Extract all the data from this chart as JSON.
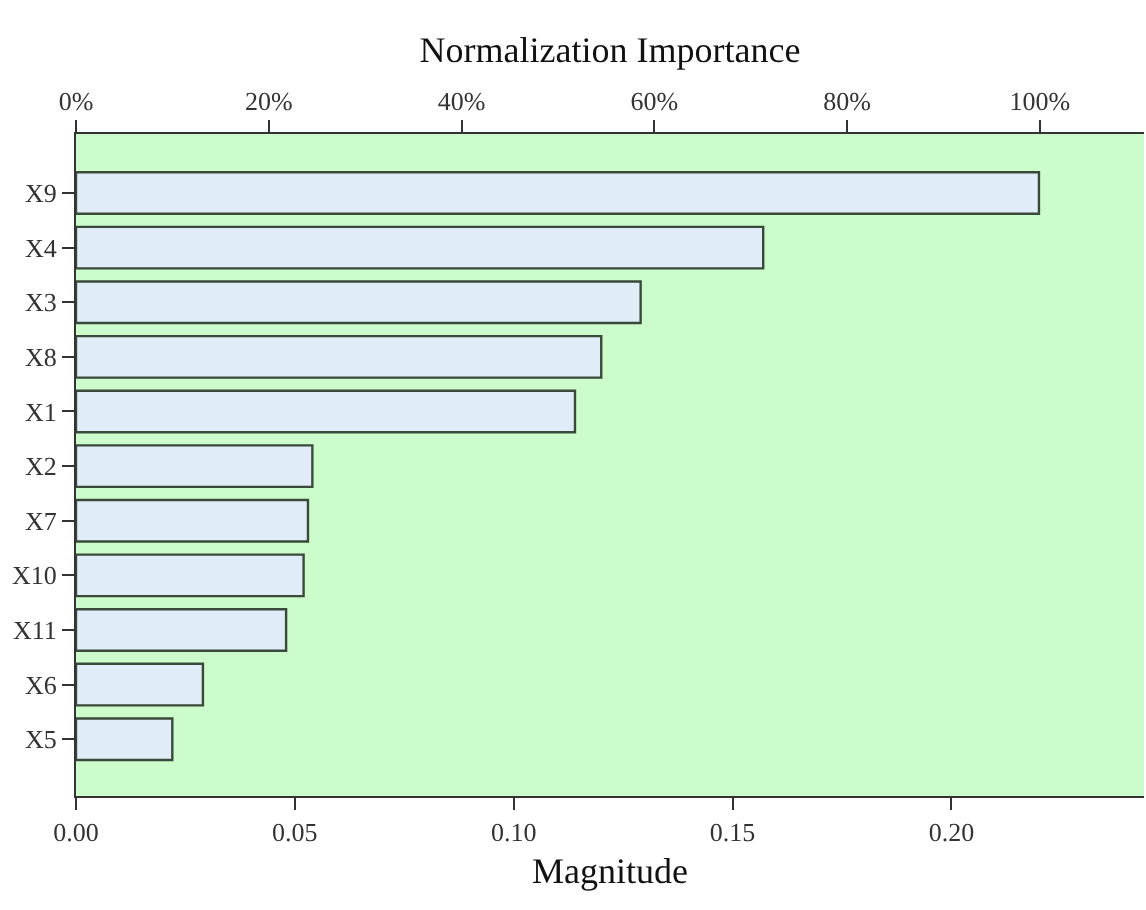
{
  "chart_data": {
    "type": "bar",
    "orientation": "horizontal",
    "xlabel": "Magnitude",
    "x2label": "Normalization Importance",
    "categories": [
      "X9",
      "X4",
      "X3",
      "X8",
      "X1",
      "X2",
      "X7",
      "X10",
      "X11",
      "X6",
      "X5"
    ],
    "values": [
      0.22,
      0.157,
      0.129,
      0.12,
      0.114,
      0.054,
      0.053,
      0.052,
      0.048,
      0.029,
      0.022
    ],
    "color": "#e0ecf8",
    "xlim": [
      0,
      0.244
    ],
    "xticks": [
      {
        "value": 0,
        "label": "0.00"
      },
      {
        "value": 0.05,
        "label": "0.05"
      },
      {
        "value": 0.1,
        "label": "0.10"
      },
      {
        "value": 0.15,
        "label": "0.15"
      },
      {
        "value": 0.2,
        "label": "0.20"
      }
    ],
    "x2lim": [
      0,
      110.8
    ],
    "x2ticks": [
      {
        "value": 0,
        "label": "0%"
      },
      {
        "value": 20,
        "label": "20%"
      },
      {
        "value": 40,
        "label": "40%"
      },
      {
        "value": 60,
        "label": "60%"
      },
      {
        "value": 80,
        "label": "80%"
      },
      {
        "value": 100,
        "label": "100%"
      }
    ],
    "grid": false
  }
}
